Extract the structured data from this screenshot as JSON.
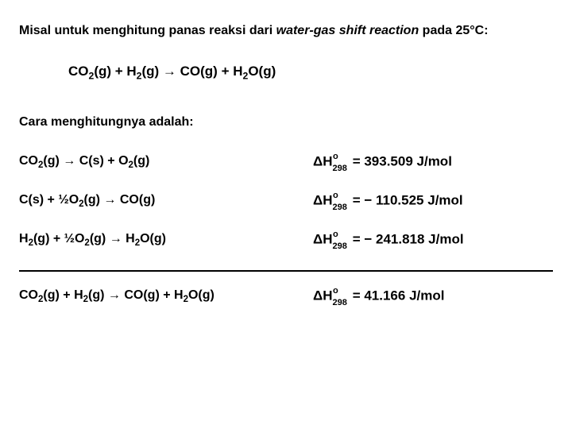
{
  "heading": {
    "prefix": "Misal untuk menghitung panas reaksi dari ",
    "italic": "water-gas shift reaction",
    "suffix": " pada 25°C:"
  },
  "mainEquation": {
    "co2": "CO",
    "co2sub": "2",
    "co2phase": "(g) + H",
    "h2sub": "2",
    "h2phase": "(g) → CO(g) + H",
    "h2osub": "2",
    "h2ophase": "O(g)"
  },
  "subheading": "Cara menghitungnya adalah:",
  "reactions": [
    {
      "left": "CO₂(g) → C(s) + O₂(g)",
      "dh_value": "393.509 J/mol",
      "dh_sign": ""
    },
    {
      "left": "C(s) + ½O₂(g) → CO(g)",
      "dh_value": "110.525 J/mol",
      "dh_sign": "− "
    },
    {
      "left": "H₂(g) + ½O₂(g) → H₂O(g)",
      "dh_value": "241.818 J/mol",
      "dh_sign": "− "
    }
  ],
  "final": {
    "left": "CO₂(g) + H₂(g) → CO(g) + H₂O(g)",
    "dh_value": "41.166 J/mol",
    "dh_sign": ""
  },
  "dh_label": {
    "delta": "ΔH",
    "sub": "298",
    "sup": "o",
    "eq": " = "
  }
}
